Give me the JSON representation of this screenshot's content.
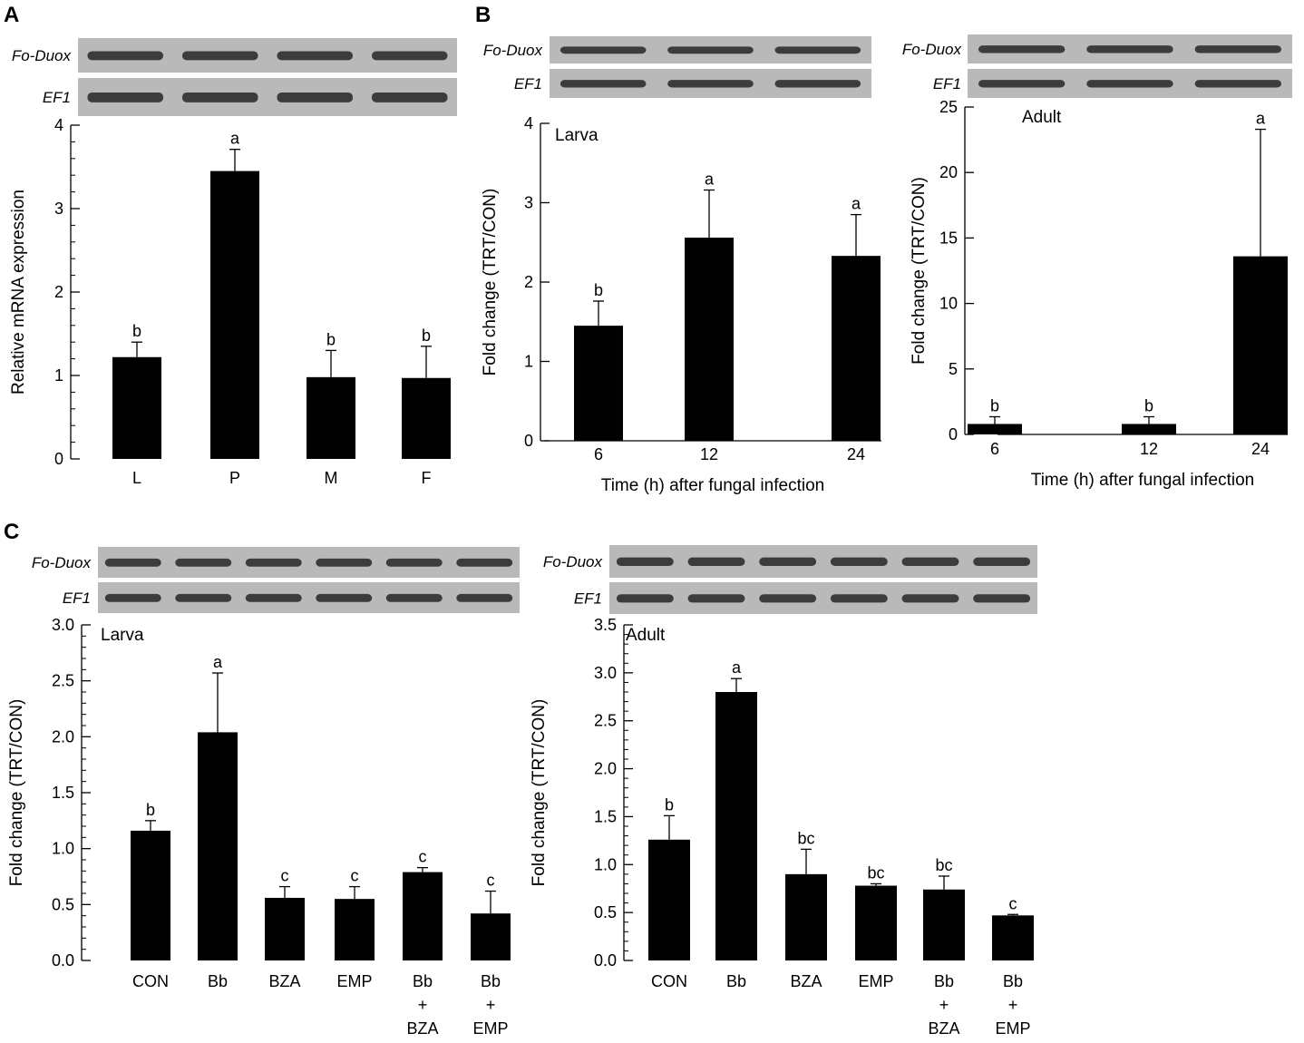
{
  "panel_labels": [
    "A",
    "B",
    "C"
  ],
  "gel": {
    "target_label": "Fo-Duox",
    "reference_label": "EF1"
  },
  "chart_data": [
    {
      "id": "A",
      "type": "bar",
      "title": "",
      "categories": [
        "L",
        "P",
        "M",
        "F"
      ],
      "values": [
        1.22,
        3.45,
        0.98,
        0.97
      ],
      "errors": [
        0.18,
        0.26,
        0.32,
        0.38
      ],
      "significance": [
        "b",
        "a",
        "b",
        "b"
      ],
      "xlabel": "",
      "ylabel": "Relative mRNA expression",
      "ylim": [
        0,
        4
      ],
      "yticks": [
        "0",
        "1",
        "2",
        "3",
        "4"
      ],
      "bar_color": "#000000"
    },
    {
      "id": "B-larva",
      "type": "bar",
      "title": "Larva",
      "categories": [
        "6",
        "12",
        "24"
      ],
      "values": [
        1.45,
        2.56,
        2.33
      ],
      "errors": [
        0.31,
        0.6,
        0.52
      ],
      "significance": [
        "b",
        "a",
        "a"
      ],
      "xlabel": "Time (h) after fungal infection",
      "ylabel": "Fold change (TRT/CON)",
      "ylim": [
        0,
        4
      ],
      "yticks": [
        "0",
        "1",
        "2",
        "3",
        "4"
      ],
      "bar_color": "#000000"
    },
    {
      "id": "B-adult",
      "type": "bar",
      "title": "Adult",
      "categories": [
        "6",
        "12",
        "24"
      ],
      "values": [
        0.8,
        0.8,
        13.6
      ],
      "errors": [
        0.55,
        0.55,
        9.7
      ],
      "significance": [
        "b",
        "b",
        "a"
      ],
      "xlabel": "Time (h) after fungal infection",
      "ylabel": "Fold change (TRT/CON)",
      "ylim": [
        0,
        25
      ],
      "yticks": [
        "0",
        "5",
        "10",
        "15",
        "20",
        "25"
      ],
      "bar_color": "#000000"
    },
    {
      "id": "C-larva",
      "type": "bar",
      "title": "Larva",
      "categories": [
        [
          "CON"
        ],
        [
          "Bb"
        ],
        [
          "BZA"
        ],
        [
          "EMP"
        ],
        [
          "Bb",
          "+",
          "BZA"
        ],
        [
          "Bb",
          "+",
          "EMP"
        ]
      ],
      "values": [
        1.16,
        2.04,
        0.56,
        0.55,
        0.79,
        0.42
      ],
      "errors": [
        0.09,
        0.53,
        0.1,
        0.11,
        0.04,
        0.2
      ],
      "significance": [
        "b",
        "a",
        "c",
        "c",
        "c",
        "c"
      ],
      "xlabel": "",
      "ylabel": "Fold change (TRT/CON)",
      "ylim": [
        0,
        3.0
      ],
      "yticks": [
        "0.0",
        "0.5",
        "1.0",
        "1.5",
        "2.0",
        "2.5",
        "3.0"
      ],
      "bar_color": "#000000"
    },
    {
      "id": "C-adult",
      "type": "bar",
      "title": "Adult",
      "categories": [
        [
          "CON"
        ],
        [
          "Bb"
        ],
        [
          "BZA"
        ],
        [
          "EMP"
        ],
        [
          "Bb",
          "+",
          "BZA"
        ],
        [
          "Bb",
          "+",
          "EMP"
        ]
      ],
      "values": [
        1.26,
        2.8,
        0.9,
        0.78,
        0.74,
        0.47
      ],
      "errors": [
        0.25,
        0.14,
        0.26,
        0.02,
        0.14,
        0.01
      ],
      "significance": [
        "b",
        "a",
        "bc",
        "bc",
        "bc",
        "c"
      ],
      "xlabel": "",
      "ylabel": "Fold change (TRT/CON)",
      "ylim": [
        0,
        3.5
      ],
      "yticks": [
        "0.0",
        "0.5",
        "1.0",
        "1.5",
        "2.0",
        "2.5",
        "3.0",
        "3.5"
      ],
      "bar_color": "#000000"
    }
  ]
}
